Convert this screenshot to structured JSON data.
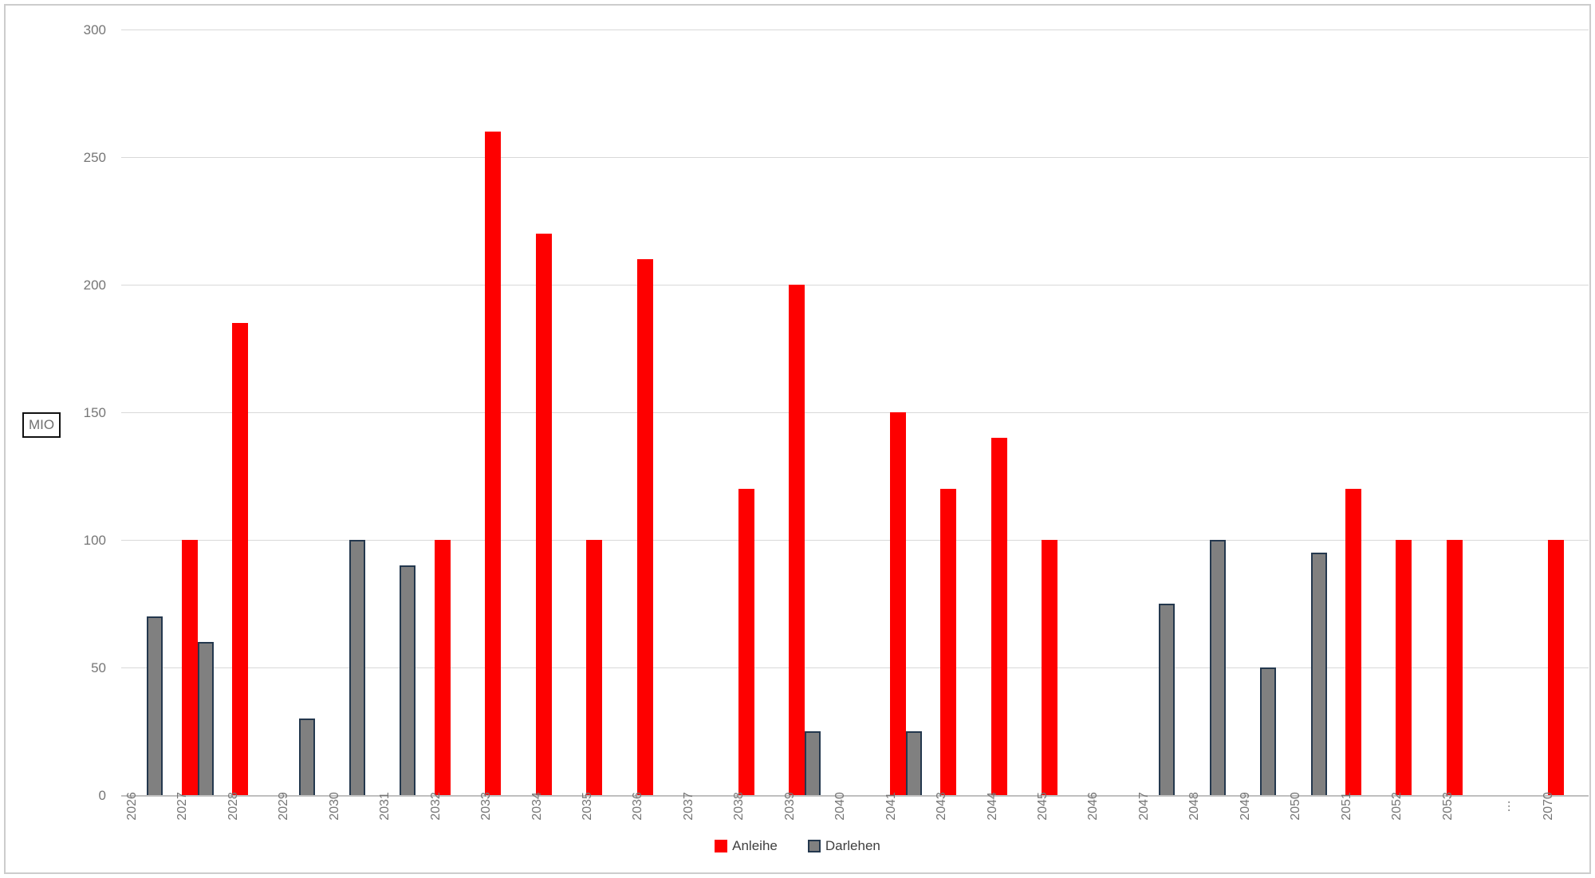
{
  "y_axis": {
    "unit_label": "MIO",
    "tick_labels": [
      "0",
      "50",
      "100",
      "150",
      "200",
      "250",
      "300"
    ]
  },
  "legend": {
    "items": [
      {
        "label": "Anleihe",
        "color": "#fe0000",
        "border": "#fe0000"
      },
      {
        "label": "Darlehen",
        "color": "#808080",
        "border": "#24384e"
      }
    ]
  },
  "chart_data": {
    "type": "bar",
    "title": "",
    "xlabel": "",
    "ylabel": "MIO",
    "ylim": [
      0,
      300
    ],
    "y_ticks": [
      0,
      50,
      100,
      150,
      200,
      250,
      300
    ],
    "grid": true,
    "legend_position": "bottom-center",
    "categories": [
      "2026",
      "2027",
      "2028",
      "2029",
      "2030",
      "2031",
      "2032",
      "2033",
      "2034",
      "2035",
      "2036",
      "2037",
      "2038",
      "2039",
      "2040",
      "2041",
      "2043",
      "2044",
      "2045",
      "2046",
      "2047",
      "2048",
      "2049",
      "2050",
      "2051",
      "2052",
      "2053",
      "…",
      "2070"
    ],
    "series": [
      {
        "name": "Anleihe",
        "color": "#fe0000",
        "values": [
          null,
          100,
          185,
          null,
          null,
          null,
          100,
          260,
          220,
          100,
          210,
          null,
          120,
          200,
          null,
          150,
          120,
          140,
          100,
          null,
          null,
          null,
          null,
          null,
          120,
          100,
          100,
          null,
          100
        ]
      },
      {
        "name": "Darlehen",
        "color": "#808080",
        "border_color": "#24384e",
        "values": [
          70,
          60,
          null,
          30,
          100,
          90,
          null,
          null,
          null,
          null,
          null,
          null,
          null,
          25,
          null,
          25,
          null,
          null,
          null,
          null,
          75,
          100,
          50,
          95,
          null,
          null,
          null,
          null,
          null
        ]
      }
    ]
  }
}
